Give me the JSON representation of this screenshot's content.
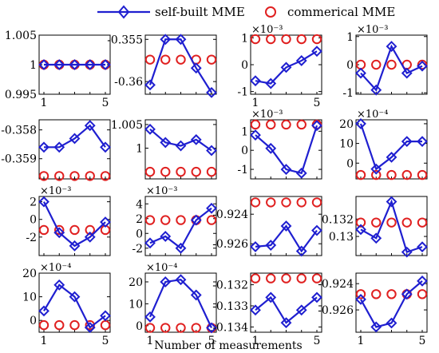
{
  "figure": {
    "xlabel": "Number of measurements",
    "legend": {
      "placement": "top-center",
      "entries": [
        {
          "name": "self-built MME",
          "color": "#1f1fd0",
          "marker": "diamond",
          "line": true
        },
        {
          "name": "commerical MME",
          "color": "#e02020",
          "marker": "circle",
          "line": false
        }
      ]
    }
  },
  "chart_data": [
    {
      "type": "line",
      "x": [
        1,
        2,
        3,
        4,
        5
      ],
      "ylim": [
        0.995,
        1.005
      ],
      "exp": "",
      "yticks": [
        "0.995",
        "1",
        "1.005"
      ],
      "ytickvals": [
        0.995,
        1,
        1.005
      ],
      "xticks": [
        "1",
        "5"
      ],
      "series": [
        {
          "name": "self-built MME",
          "values": [
            1,
            1,
            1,
            1,
            1
          ]
        },
        {
          "name": "commerical MME",
          "values": [
            1,
            1,
            1,
            1,
            1
          ]
        }
      ]
    },
    {
      "type": "line",
      "x": [
        1,
        2,
        3,
        4,
        5
      ],
      "ylim": [
        -0.3615,
        -0.3545
      ],
      "exp": "",
      "yticks": [
        "-0.355",
        "-0.36"
      ],
      "ytickvals": [
        -0.355,
        -0.36
      ],
      "xticks": [],
      "series": [
        {
          "name": "self-built MME",
          "values": [
            -0.3604,
            -0.355,
            -0.355,
            -0.3584,
            -0.3613
          ]
        },
        {
          "name": "commerical MME",
          "values": [
            -0.3574,
            -0.3574,
            -0.3574,
            -0.3574,
            -0.3574
          ]
        }
      ]
    },
    {
      "type": "line",
      "x": [
        1,
        2,
        3,
        4,
        5
      ],
      "ylim": [
        -1.1,
        1.1
      ],
      "exp": "×10⁻³",
      "yticks": [
        "1",
        "0",
        "-1"
      ],
      "ytickvals": [
        1,
        0,
        -1
      ],
      "xticks": [
        "1",
        "5"
      ],
      "series": [
        {
          "name": "self-built MME",
          "values": [
            -0.6,
            -0.7,
            -0.1,
            0.15,
            0.5
          ]
        },
        {
          "name": "commerical MME",
          "values": [
            0.95,
            0.95,
            0.95,
            0.95,
            0.95
          ]
        }
      ]
    },
    {
      "type": "line",
      "x": [
        1,
        2,
        3,
        4,
        5
      ],
      "ylim": [
        -1.05,
        1.05
      ],
      "exp": "×10⁻³",
      "yticks": [
        "1",
        "0",
        "-1"
      ],
      "ytickvals": [
        1,
        0,
        -1
      ],
      "xticks": [],
      "series": [
        {
          "name": "self-built MME",
          "values": [
            -0.3,
            -0.9,
            0.65,
            -0.3,
            -0.05
          ]
        },
        {
          "name": "commerical MME",
          "values": [
            0,
            0,
            0,
            0,
            0
          ]
        }
      ]
    },
    {
      "type": "line",
      "x": [
        1,
        2,
        3,
        4,
        5
      ],
      "ylim": [
        -0.3597,
        -0.35765
      ],
      "exp": "",
      "yticks": [
        "-0.358",
        "-0.359"
      ],
      "ytickvals": [
        -0.358,
        -0.359
      ],
      "xticks": [],
      "series": [
        {
          "name": "self-built MME",
          "values": [
            -0.3586,
            -0.3586,
            -0.3583,
            -0.35785,
            -0.3586
          ]
        },
        {
          "name": "commerical MME",
          "values": [
            -0.3596,
            -0.3596,
            -0.3596,
            -0.3596,
            -0.3596
          ]
        }
      ]
    },
    {
      "type": "line",
      "x": [
        1,
        2,
        3,
        4,
        5
      ],
      "ylim": [
        0.9935,
        1.006
      ],
      "exp": "",
      "yticks": [
        "1.005",
        "1"
      ],
      "ytickvals": [
        1.005,
        1
      ],
      "xticks": [],
      "series": [
        {
          "name": "self-built MME",
          "values": [
            1.004,
            1.0012,
            1.0005,
            1.0018,
            0.9995
          ]
        },
        {
          "name": "commerical MME",
          "values": [
            0.995,
            0.995,
            0.995,
            0.995,
            0.995
          ]
        }
      ]
    },
    {
      "type": "line",
      "x": [
        1,
        2,
        3,
        4,
        5
      ],
      "ylim": [
        -1.5,
        1.6
      ],
      "exp": "×10⁻³",
      "yticks": [
        "1",
        "0",
        "-1"
      ],
      "ytickvals": [
        1,
        0,
        -1
      ],
      "xticks": [],
      "series": [
        {
          "name": "self-built MME",
          "values": [
            0.8,
            0.1,
            -1,
            -1.2,
            1.3
          ]
        },
        {
          "name": "commerical MME",
          "values": [
            1.35,
            1.35,
            1.35,
            1.35,
            1.35
          ]
        }
      ]
    },
    {
      "type": "line",
      "x": [
        1,
        2,
        3,
        4,
        5
      ],
      "ylim": [
        -8,
        22
      ],
      "exp": "×10⁻⁴",
      "yticks": [
        "20",
        "10",
        "0"
      ],
      "ytickvals": [
        20,
        10,
        0
      ],
      "xticks": [],
      "series": [
        {
          "name": "self-built MME",
          "values": [
            20,
            -3,
            3,
            11,
            11
          ]
        },
        {
          "name": "commerical MME",
          "values": [
            -6,
            -6,
            -6,
            -6,
            -6
          ]
        }
      ]
    },
    {
      "type": "line",
      "x": [
        1,
        2,
        3,
        4,
        5
      ],
      "ylim": [
        -4.1,
        2.6
      ],
      "exp": "×10⁻³",
      "yticks": [
        "2",
        "0",
        "-2"
      ],
      "ytickvals": [
        2,
        0,
        -2
      ],
      "xticks": [],
      "series": [
        {
          "name": "self-built MME",
          "values": [
            2,
            -1.5,
            -3,
            -2,
            -0.3
          ]
        },
        {
          "name": "commerical MME",
          "values": [
            -1.2,
            -1.2,
            -1.2,
            -1.2,
            -1.2
          ]
        }
      ]
    },
    {
      "type": "line",
      "x": [
        1,
        2,
        3,
        4,
        5
      ],
      "ylim": [
        -3,
        5
      ],
      "exp": "×10⁻³",
      "yticks": [
        "4",
        "2",
        "0",
        "-2"
      ],
      "ytickvals": [
        4,
        2,
        0,
        -2
      ],
      "xticks": [],
      "series": [
        {
          "name": "self-built MME",
          "values": [
            -1.3,
            -0.4,
            -2,
            1.8,
            3.4
          ]
        },
        {
          "name": "commerical MME",
          "values": [
            1.8,
            1.8,
            1.8,
            1.8,
            1.8
          ]
        }
      ]
    },
    {
      "type": "line",
      "x": [
        1,
        2,
        3,
        4,
        5
      ],
      "ylim": [
        -0.9268,
        -0.9228
      ],
      "exp": "",
      "yticks": [
        "-0.924",
        "-0.926"
      ],
      "ytickvals": [
        -0.924,
        -0.926
      ],
      "xticks": [],
      "series": [
        {
          "name": "self-built MME",
          "values": [
            -0.9262,
            -0.9261,
            -0.9248,
            -0.9265,
            -0.9251
          ]
        },
        {
          "name": "commerical MME",
          "values": [
            -0.9232,
            -0.9232,
            -0.9232,
            -0.9232,
            -0.9232
          ]
        }
      ]
    },
    {
      "type": "line",
      "x": [
        1,
        2,
        3,
        4,
        5
      ],
      "ylim": [
        0.1278,
        0.1346
      ],
      "exp": "",
      "yticks": [
        "0.132",
        "0.13"
      ],
      "ytickvals": [
        0.132,
        0.13
      ],
      "xticks": [],
      "series": [
        {
          "name": "self-built MME",
          "values": [
            0.1308,
            0.1298,
            0.134,
            0.1282,
            0.1288
          ]
        },
        {
          "name": "commerical MME",
          "values": [
            0.1316,
            0.1316,
            0.1316,
            0.1316,
            0.1316
          ]
        }
      ]
    },
    {
      "type": "line",
      "x": [
        1,
        2,
        3,
        4,
        5
      ],
      "ylim": [
        -5,
        20
      ],
      "exp": "×10⁻⁴",
      "yticks": [
        "20",
        "10",
        "0"
      ],
      "ytickvals": [
        20,
        10,
        0
      ],
      "xticks": [
        "1",
        "5"
      ],
      "series": [
        {
          "name": "self-built MME",
          "values": [
            4,
            15,
            10,
            -3,
            2
          ]
        },
        {
          "name": "commerical MME",
          "values": [
            -2,
            -2,
            -2,
            -2,
            -2
          ]
        }
      ]
    },
    {
      "type": "line",
      "x": [
        1,
        2,
        3,
        4,
        5
      ],
      "ylim": [
        -3,
        24
      ],
      "exp": "×10⁻⁴",
      "yticks": [
        "20",
        "10",
        "0"
      ],
      "ytickvals": [
        20,
        10,
        0
      ],
      "xticks": [
        "1",
        "5"
      ],
      "series": [
        {
          "name": "self-built MME",
          "values": [
            4,
            20,
            21,
            14,
            -1
          ]
        },
        {
          "name": "commerical MME",
          "values": [
            -1,
            -1,
            -1,
            -1,
            -1
          ]
        }
      ]
    },
    {
      "type": "line",
      "x": [
        1,
        2,
        3,
        4,
        5
      ],
      "ylim": [
        -0.13425,
        -0.13145
      ],
      "exp": "",
      "yticks": [
        "-0.132",
        "-0.133",
        "-0.134"
      ],
      "ytickvals": [
        -0.132,
        -0.133,
        -0.134
      ],
      "xticks": [
        "1",
        "5"
      ],
      "series": [
        {
          "name": "self-built MME",
          "values": [
            -0.1332,
            -0.1326,
            -0.1338,
            -0.1332,
            -0.1326
          ]
        },
        {
          "name": "commerical MME",
          "values": [
            -0.1317,
            -0.1317,
            -0.1317,
            -0.1317,
            -0.1317
          ]
        }
      ]
    },
    {
      "type": "line",
      "x": [
        1,
        2,
        3,
        4,
        5
      ],
      "ylim": [
        -0.9277,
        -0.9232
      ],
      "exp": "",
      "yticks": [
        "-0.924",
        "-0.926"
      ],
      "ytickvals": [
        -0.924,
        -0.926
      ],
      "xticks": [
        "1",
        "5"
      ],
      "series": [
        {
          "name": "self-built MME",
          "values": [
            -0.9252,
            -0.9273,
            -0.927,
            -0.9248,
            -0.9238
          ]
        },
        {
          "name": "commerical MME",
          "values": [
            -0.9248,
            -0.9248,
            -0.9248,
            -0.9248,
            -0.9248
          ]
        }
      ]
    }
  ]
}
